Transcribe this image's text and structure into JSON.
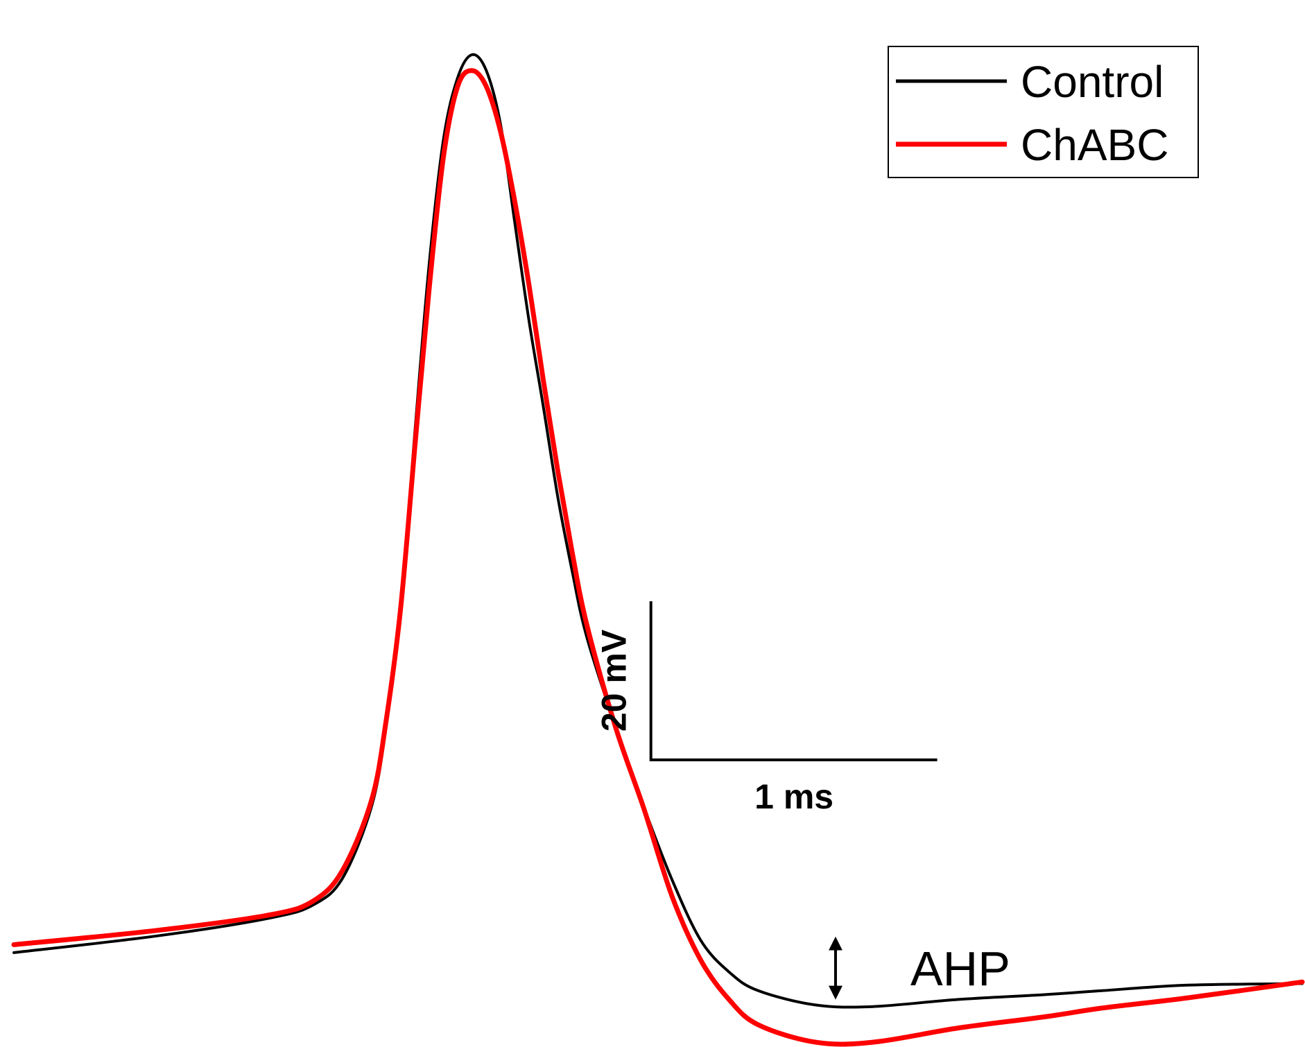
{
  "chart_data": {
    "type": "line",
    "xunit": "ms",
    "yunit": "mV",
    "xlim": [
      0,
      4.5
    ],
    "ylim": [
      -72,
      60
    ],
    "grid": false,
    "legend_position": "top-right",
    "series": [
      {
        "name": "Control",
        "color": "#000000",
        "points": [
          [
            0.0,
            -60.1
          ],
          [
            0.5,
            -58.0
          ],
          [
            0.9,
            -55.7
          ],
          [
            1.05,
            -54.0
          ],
          [
            1.15,
            -50.6
          ],
          [
            1.25,
            -41.6
          ],
          [
            1.3,
            -31.7
          ],
          [
            1.35,
            -17.5
          ],
          [
            1.4,
            5.2
          ],
          [
            1.45,
            26.5
          ],
          [
            1.5,
            42.3
          ],
          [
            1.55,
            50.2
          ],
          [
            1.6,
            53.1
          ],
          [
            1.65,
            51.1
          ],
          [
            1.7,
            44.3
          ],
          [
            1.75,
            31.8
          ],
          [
            1.8,
            19.4
          ],
          [
            1.85,
            8.6
          ],
          [
            1.9,
            -2.7
          ],
          [
            1.95,
            -12.0
          ],
          [
            2.0,
            -20.2
          ],
          [
            2.1,
            -31.5
          ],
          [
            2.2,
            -41.7
          ],
          [
            2.3,
            -51.0
          ],
          [
            2.4,
            -58.6
          ],
          [
            2.5,
            -62.6
          ],
          [
            2.6,
            -64.9
          ],
          [
            2.8,
            -66.7
          ],
          [
            3.0,
            -66.9
          ],
          [
            3.3,
            -66.0
          ],
          [
            3.6,
            -65.4
          ],
          [
            3.8,
            -64.9
          ],
          [
            4.1,
            -64.2
          ],
          [
            4.5,
            -64.0
          ]
        ]
      },
      {
        "name": "ChABC",
        "color": "#ff0000",
        "points": [
          [
            0.0,
            -59.1
          ],
          [
            0.5,
            -57.3
          ],
          [
            0.9,
            -55.3
          ],
          [
            1.05,
            -53.5
          ],
          [
            1.15,
            -49.6
          ],
          [
            1.25,
            -40.8
          ],
          [
            1.3,
            -30.9
          ],
          [
            1.35,
            -17.0
          ],
          [
            1.4,
            3.4
          ],
          [
            1.45,
            23.4
          ],
          [
            1.5,
            40.1
          ],
          [
            1.55,
            49.1
          ],
          [
            1.6,
            51.1
          ],
          [
            1.65,
            49.1
          ],
          [
            1.7,
            43.4
          ],
          [
            1.75,
            34.5
          ],
          [
            1.8,
            23.9
          ],
          [
            1.85,
            11.9
          ],
          [
            1.9,
            0.6
          ],
          [
            1.95,
            -9.6
          ],
          [
            2.0,
            -18.6
          ],
          [
            2.1,
            -31.5
          ],
          [
            2.2,
            -41.9
          ],
          [
            2.3,
            -53.1
          ],
          [
            2.4,
            -61.1
          ],
          [
            2.5,
            -66.1
          ],
          [
            2.6,
            -69.2
          ],
          [
            2.8,
            -71.4
          ],
          [
            3.0,
            -71.4
          ],
          [
            3.3,
            -69.6
          ],
          [
            3.6,
            -68.2
          ],
          [
            3.8,
            -67.1
          ],
          [
            4.1,
            -65.8
          ],
          [
            4.5,
            -63.8
          ]
        ]
      }
    ],
    "scale_bar": {
      "x_value": 1,
      "x_label": "1 ms",
      "y_value": 20,
      "y_label": "20 mV"
    },
    "annotations": [
      {
        "text": "AHP",
        "type": "double-arrow",
        "x": 2.87,
        "y_from": -57.2,
        "y_to": -66.9
      }
    ]
  }
}
